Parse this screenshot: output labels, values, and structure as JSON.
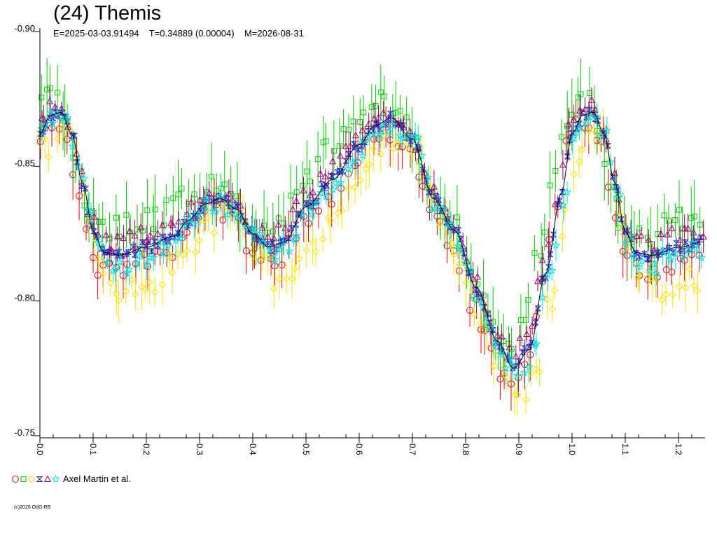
{
  "chart_data": {
    "type": "scatter",
    "title": "(24) Themis",
    "subtitle": "E=2025-03-03.91494    T=0.34889 (0.00004)    M=2026-08-31",
    "xlabel": "",
    "ylabel": "",
    "xlim": [
      0,
      1.25
    ],
    "ylim": [
      -0.9,
      -0.75
    ],
    "y_inverted": true,
    "grid": false,
    "x_ticks": [
      0.0,
      0.1,
      0.2,
      0.3,
      0.4,
      0.5,
      0.6,
      0.7,
      0.8,
      0.9,
      1.0,
      1.1,
      1.2
    ],
    "x_tick_labels": [
      "0.0",
      "0.1",
      "0.2",
      "0.3",
      "0.4",
      "0.5",
      "0.6",
      "0.7",
      "0.8",
      "0.9",
      "1.0",
      "1.1",
      "1.2"
    ],
    "y_ticks": [
      -0.9,
      -0.85,
      -0.8,
      -0.75
    ],
    "y_tick_labels": [
      "-0.90",
      "-0.85",
      "-0.80",
      "-0.75"
    ],
    "legend": {
      "placement": "bottom-left",
      "label": "Axel Martin et al."
    },
    "curve": {
      "x": [
        0.0,
        0.02,
        0.04,
        0.06,
        0.08,
        0.1,
        0.12,
        0.15,
        0.2,
        0.25,
        0.28,
        0.31,
        0.34,
        0.37,
        0.4,
        0.43,
        0.46,
        0.5,
        0.55,
        0.6,
        0.63,
        0.66,
        0.7,
        0.74,
        0.78,
        0.82,
        0.86,
        0.89,
        0.92,
        0.95,
        0.98,
        1.0,
        1.02,
        1.04,
        1.06,
        1.08,
        1.1,
        1.12,
        1.15,
        1.2,
        1.25
      ],
      "y": [
        -0.862,
        -0.869,
        -0.87,
        -0.862,
        -0.844,
        -0.826,
        -0.818,
        -0.817,
        -0.82,
        -0.824,
        -0.83,
        -0.836,
        -0.838,
        -0.834,
        -0.825,
        -0.82,
        -0.822,
        -0.835,
        -0.845,
        -0.858,
        -0.865,
        -0.868,
        -0.86,
        -0.838,
        -0.826,
        -0.805,
        -0.785,
        -0.775,
        -0.782,
        -0.81,
        -0.84,
        -0.862,
        -0.869,
        -0.87,
        -0.862,
        -0.844,
        -0.826,
        -0.818,
        -0.817,
        -0.82,
        -0.822
      ]
    },
    "series": [
      {
        "color": "#e00000",
        "marker": "circle",
        "offset": 0.004,
        "phase": 0.008,
        "noise": 0.004,
        "err": 0.008,
        "step": 0.012
      },
      {
        "color": "#00cc00",
        "marker": "square",
        "offset": -0.006,
        "phase": 0.012,
        "noise": 0.005,
        "err": 0.011,
        "step": 0.01
      },
      {
        "color": "#ffe000",
        "marker": "diamond",
        "offset": 0.008,
        "phase": -0.01,
        "noise": 0.005,
        "err": 0.007,
        "step": 0.01
      },
      {
        "color": "#2020c0",
        "marker": "hourglass",
        "offset": 0.0,
        "phase": 0.0,
        "noise": 0.002,
        "err": 0.002,
        "step": 0.006
      },
      {
        "color": "#a00060",
        "marker": "triangle",
        "offset": -0.003,
        "phase": 0.004,
        "noise": 0.003,
        "err": 0.005,
        "step": 0.011
      },
      {
        "color": "#00e0e0",
        "marker": "star",
        "offset": 0.002,
        "phase": -0.004,
        "noise": 0.004,
        "err": 0.005,
        "step": 0.009
      }
    ],
    "copyright": "(c)2025 OdG-RB"
  }
}
